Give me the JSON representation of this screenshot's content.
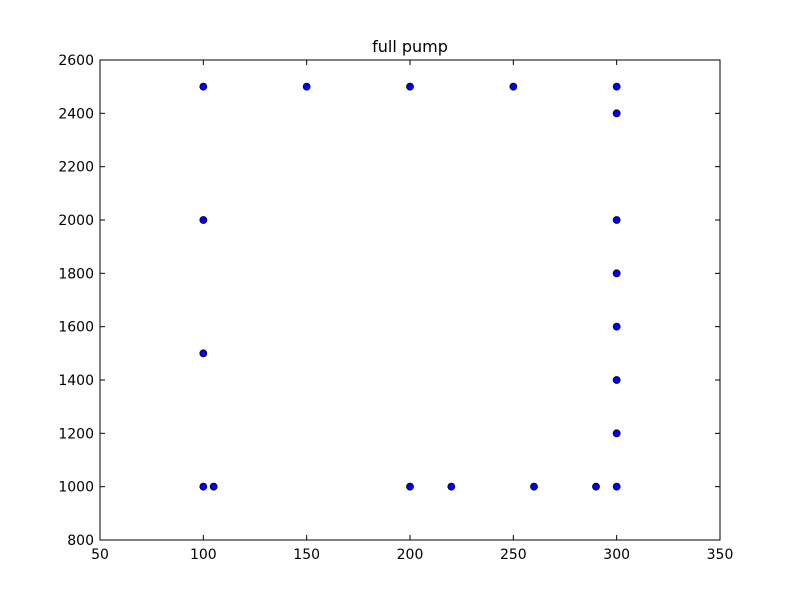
{
  "chart_data": {
    "type": "scatter",
    "title": "full pump",
    "xlabel": "",
    "ylabel": "",
    "xlim": [
      50,
      350
    ],
    "ylim": [
      800,
      2600
    ],
    "xticks": [
      50,
      100,
      150,
      200,
      250,
      300,
      350
    ],
    "yticks": [
      800,
      1000,
      1200,
      1400,
      1600,
      1800,
      2000,
      2200,
      2400,
      2600
    ],
    "grid": false,
    "legend": "none",
    "series": [
      {
        "marker_color": "#0000ff",
        "points": [
          {
            "x": 100,
            "y": 2500
          },
          {
            "x": 150,
            "y": 2500
          },
          {
            "x": 200,
            "y": 2500
          },
          {
            "x": 250,
            "y": 2500
          },
          {
            "x": 300,
            "y": 2500
          },
          {
            "x": 300,
            "y": 2400
          },
          {
            "x": 100,
            "y": 2000
          },
          {
            "x": 300,
            "y": 2000
          },
          {
            "x": 300,
            "y": 1800
          },
          {
            "x": 300,
            "y": 1600
          },
          {
            "x": 100,
            "y": 1500
          },
          {
            "x": 300,
            "y": 1400
          },
          {
            "x": 300,
            "y": 1200
          },
          {
            "x": 100,
            "y": 1000
          },
          {
            "x": 105,
            "y": 1000
          },
          {
            "x": 200,
            "y": 1000
          },
          {
            "x": 220,
            "y": 1000
          },
          {
            "x": 260,
            "y": 1000
          },
          {
            "x": 290,
            "y": 1000
          },
          {
            "x": 300,
            "y": 1000
          }
        ]
      }
    ]
  }
}
